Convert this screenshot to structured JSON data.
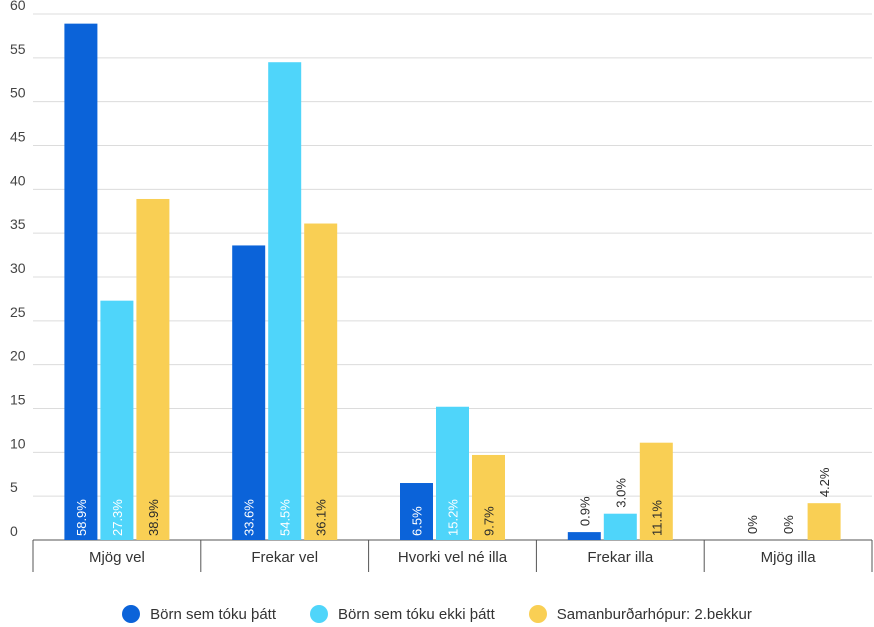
{
  "chart_data": {
    "type": "bar",
    "categories": [
      "Mjög vel",
      "Frekar vel",
      "Hvorki vel né illa",
      "Frekar illa",
      "Mjög illa"
    ],
    "series": [
      {
        "name": "Börn sem tóku þátt",
        "color": "#0b63d9",
        "values": [
          58.9,
          33.6,
          6.5,
          0.9,
          0
        ],
        "labels": [
          "58.9%",
          "33.6%",
          "6.5%",
          "0.9%",
          "0%"
        ]
      },
      {
        "name": "Börn sem tóku ekki þátt",
        "color": "#4fd5fa",
        "values": [
          27.3,
          54.5,
          15.2,
          3.0,
          0
        ],
        "labels": [
          "27.3%",
          "54.5%",
          "15.2%",
          "3.0%",
          "0%"
        ]
      },
      {
        "name": "Samanburðarhópur: 2.bekkur",
        "color": "#f9cf54",
        "values": [
          38.9,
          36.1,
          9.7,
          11.1,
          4.2
        ],
        "labels": [
          "38.9%",
          "36.1%",
          "9.7%",
          "11.1%",
          "4.2%"
        ]
      }
    ],
    "y_ticks": [
      "0",
      "5",
      "10",
      "15",
      "20",
      "25",
      "30",
      "35",
      "40",
      "45",
      "50",
      "55",
      "60"
    ],
    "ylim": [
      0,
      60
    ],
    "grid": true,
    "legend_position": "bottom"
  }
}
